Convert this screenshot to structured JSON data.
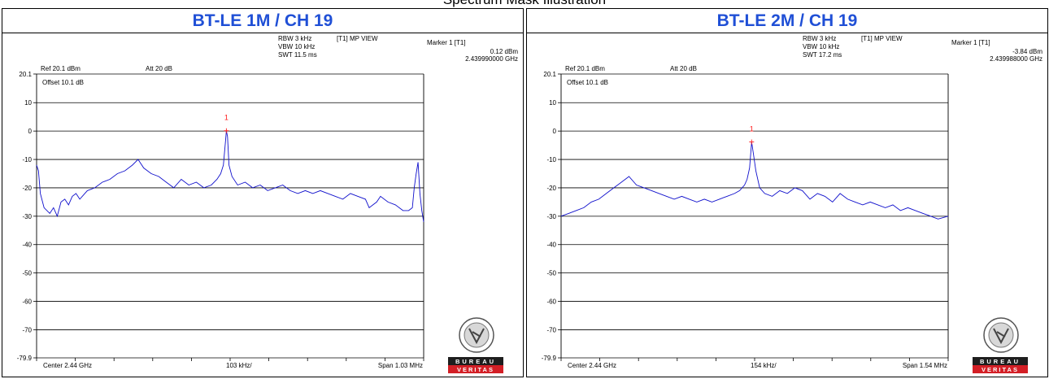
{
  "page_title": "Spectrum Mask Illustration",
  "colors": {
    "title": "#1f4fd6",
    "trace": "#1010cc",
    "marker": "#ff1a1a",
    "grid": "#000000"
  },
  "panels": [
    {
      "title": "BT-LE 1M / CH 19",
      "rbw": "RBW 3 kHz",
      "vbw": "VBW 10 kHz",
      "swt": "SWT 11.5 ms",
      "view": "[T1] MP VIEW",
      "marker_label": "Marker 1 [T1]",
      "marker_level": "0.12 dBm",
      "marker_freq": "2.439990000 GHz",
      "ref": "Ref 20.1 dBm",
      "att": "Att  20 dB",
      "offset": "Offset 10.1 dB",
      "center": "Center 2.44 GHz",
      "div": "103 kHz/",
      "span": "Span 1.03 MHz",
      "marker_tag": "1",
      "logo_text_1": "BUREAU",
      "logo_text_2": "VERITAS"
    },
    {
      "title": "BT-LE 2M / CH 19",
      "rbw": "RBW 3 kHz",
      "vbw": "VBW 10 kHz",
      "swt": "SWT 17.2 ms",
      "view": "[T1] MP VIEW",
      "marker_label": "Marker 1 [T1]",
      "marker_level": "-3.84 dBm",
      "marker_freq": "2.439988000 GHz",
      "ref": "Ref 20.1 dBm",
      "att": "Att  20 dB",
      "offset": "Offset 10.1 dB",
      "center": "Center 2.44 GHz",
      "div": "154 kHz/",
      "span": "Span 1.54 MHz",
      "marker_tag": "1",
      "logo_text_1": "BUREAU",
      "logo_text_2": "VERITAS"
    }
  ],
  "chart_data": [
    {
      "type": "line",
      "title": "BT-LE 1M / CH 19",
      "xlabel": "",
      "ylabel": "",
      "x_unit": "MHz offset from center",
      "xlim": [
        -0.515,
        0.515
      ],
      "ylim": [
        -79.9,
        20.1
      ],
      "y_ticks": [
        20.1,
        10,
        0,
        -10,
        -20,
        -30,
        -40,
        -50,
        -60,
        -70,
        -79.9
      ],
      "y_tick_labels": [
        "20.1",
        "10",
        "0",
        "-10",
        "-20",
        "-30",
        "-40",
        "-50",
        "-60",
        "-70",
        "-79.9"
      ],
      "x_divisions": 10,
      "grid": true,
      "marker": {
        "x": -0.01,
        "y": 0.12,
        "label": "1"
      },
      "series": [
        {
          "x": [
            -0.515,
            -0.51,
            -0.505,
            -0.495,
            -0.48,
            -0.47,
            -0.46,
            -0.45,
            -0.44,
            -0.43,
            -0.42,
            -0.41,
            -0.4,
            -0.38,
            -0.36,
            -0.34,
            -0.32,
            -0.3,
            -0.28,
            -0.26,
            -0.245,
            -0.23,
            -0.21,
            -0.19,
            -0.17,
            -0.15,
            -0.13,
            -0.11,
            -0.09,
            -0.07,
            -0.05,
            -0.035,
            -0.025,
            -0.018,
            -0.012,
            -0.01,
            -0.007,
            -0.003,
            0.005,
            0.02,
            0.04,
            0.06,
            0.08,
            0.1,
            0.12,
            0.14,
            0.16,
            0.18,
            0.2,
            0.22,
            0.24,
            0.26,
            0.28,
            0.3,
            0.32,
            0.34,
            0.36,
            0.37,
            0.38,
            0.39,
            0.4,
            0.42,
            0.44,
            0.46,
            0.475,
            0.485,
            0.49,
            0.495,
            0.5,
            0.505,
            0.51,
            0.515
          ],
          "y": [
            -12,
            -14,
            -22,
            -27,
            -29,
            -27,
            -30,
            -25,
            -24,
            -26,
            -23,
            -22,
            -24,
            -21,
            -20,
            -18,
            -17,
            -15,
            -14,
            -12,
            -10,
            -13,
            -15,
            -16,
            -18,
            -20,
            -17,
            -19,
            -18,
            -20,
            -19,
            -17,
            -15,
            -12,
            -3,
            0.12,
            -2,
            -12,
            -16,
            -19,
            -18,
            -20,
            -19,
            -21,
            -20,
            -19,
            -21,
            -22,
            -21,
            -22,
            -21,
            -22,
            -23,
            -24,
            -22,
            -23,
            -24,
            -27,
            -26,
            -25,
            -23,
            -25,
            -26,
            -28,
            -28,
            -27,
            -20,
            -15,
            -11,
            -22,
            -28,
            -32
          ]
        }
      ]
    },
    {
      "type": "line",
      "title": "BT-LE 2M / CH 19",
      "xlabel": "",
      "ylabel": "",
      "x_unit": "MHz offset from center",
      "xlim": [
        -0.77,
        0.77
      ],
      "ylim": [
        -79.9,
        20.1
      ],
      "y_ticks": [
        20.1,
        10,
        0,
        -10,
        -20,
        -30,
        -40,
        -50,
        -60,
        -70,
        -79.9
      ],
      "y_tick_labels": [
        "20.1",
        "10",
        "0",
        "-10",
        "-20",
        "-30",
        "-40",
        "-50",
        "-60",
        "-70",
        "-79.9"
      ],
      "x_divisions": 10,
      "grid": true,
      "marker": {
        "x": -0.012,
        "y": -3.84,
        "label": "1"
      },
      "series": [
        {
          "x": [
            -0.77,
            -0.74,
            -0.71,
            -0.68,
            -0.65,
            -0.62,
            -0.59,
            -0.56,
            -0.53,
            -0.5,
            -0.47,
            -0.44,
            -0.41,
            -0.38,
            -0.35,
            -0.32,
            -0.29,
            -0.26,
            -0.23,
            -0.2,
            -0.17,
            -0.14,
            -0.11,
            -0.08,
            -0.06,
            -0.04,
            -0.03,
            -0.02,
            -0.012,
            -0.005,
            0.005,
            0.02,
            0.04,
            0.07,
            0.1,
            0.13,
            0.16,
            0.19,
            0.22,
            0.25,
            0.28,
            0.31,
            0.34,
            0.37,
            0.4,
            0.43,
            0.46,
            0.49,
            0.52,
            0.55,
            0.58,
            0.61,
            0.64,
            0.67,
            0.7,
            0.73,
            0.77
          ],
          "y": [
            -30,
            -29,
            -28,
            -27,
            -25,
            -24,
            -22,
            -20,
            -18,
            -16,
            -19,
            -20,
            -21,
            -22,
            -23,
            -24,
            -23,
            -24,
            -25,
            -24,
            -25,
            -24,
            -23,
            -22,
            -21,
            -19,
            -17,
            -13,
            -3.84,
            -8,
            -14,
            -20,
            -22,
            -23,
            -21,
            -22,
            -20,
            -21,
            -24,
            -22,
            -23,
            -25,
            -22,
            -24,
            -25,
            -26,
            -25,
            -26,
            -27,
            -26,
            -28,
            -27,
            -28,
            -29,
            -30,
            -31,
            -30
          ]
        }
      ]
    }
  ]
}
